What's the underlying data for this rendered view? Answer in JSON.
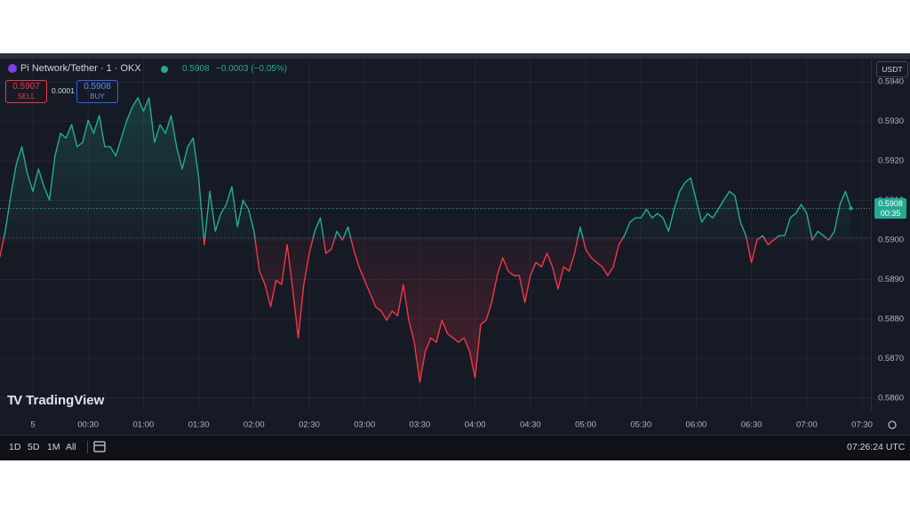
{
  "header": {
    "symbol": "Pi Network/Tether · 1 · OKX",
    "price": "0.5908",
    "change": "−0.0003 (−0.05%)"
  },
  "trade": {
    "sell_price": "0.5907",
    "sell_label": "SELL",
    "spread": "0.0001",
    "buy_price": "0.5908",
    "buy_label": "BUY"
  },
  "currency": "USDT",
  "price_tag": {
    "price": "0.5908",
    "countdown": "00:35"
  },
  "watermark": "TradingView",
  "toolbar": {
    "ranges": [
      "1D",
      "5D",
      "1M",
      "All"
    ],
    "clock": "07:26:24 UTC"
  },
  "chart_data": {
    "type": "line",
    "x": [
      -18,
      -15,
      -12,
      -9,
      -6,
      -3,
      0,
      3,
      6,
      9,
      12,
      15,
      18,
      21,
      24,
      27,
      30,
      33,
      36,
      39,
      42,
      45,
      48,
      51,
      54,
      57,
      60,
      63,
      66,
      69,
      72,
      75,
      78,
      81,
      84,
      87,
      90,
      93,
      96,
      99,
      102,
      105,
      108,
      111,
      114,
      117,
      120,
      123,
      126,
      129,
      132,
      135,
      138,
      141,
      144,
      147,
      150,
      153,
      156,
      159,
      162,
      165,
      168,
      171,
      174,
      177,
      180,
      183,
      186,
      189,
      192,
      195,
      198,
      201,
      204,
      207,
      210,
      213,
      216,
      219,
      222,
      225,
      228,
      231,
      234,
      237,
      240,
      243,
      246,
      249,
      252,
      255,
      258,
      261,
      264,
      267,
      270,
      273,
      276,
      279,
      282,
      285,
      288,
      291,
      294,
      297,
      300,
      303,
      306,
      309,
      312,
      315,
      318,
      321,
      324,
      327,
      330,
      333,
      336,
      339,
      342,
      345,
      348,
      351,
      354,
      357,
      360,
      363,
      366,
      369,
      372,
      375,
      378,
      381,
      384,
      387,
      390,
      393,
      396,
      399,
      402,
      405,
      408,
      411,
      414,
      417,
      420,
      423,
      426,
      429,
      432,
      435,
      438,
      441,
      444
    ],
    "values": [
      0.58955,
      0.59022,
      0.59112,
      0.59191,
      0.59236,
      0.59168,
      0.59123,
      0.5918,
      0.59135,
      0.59101,
      0.59213,
      0.5927,
      0.59258,
      0.59292,
      0.59236,
      0.59247,
      0.59303,
      0.5927,
      0.59315,
      0.59236,
      0.59236,
      0.59213,
      0.59258,
      0.59303,
      0.59337,
      0.5936,
      0.59326,
      0.5936,
      0.59247,
      0.59292,
      0.5927,
      0.59315,
      0.59236,
      0.5918,
      0.59236,
      0.59258,
      0.59157,
      0.58988,
      0.59123,
      0.59022,
      0.59067,
      0.5909,
      0.59135,
      0.59033,
      0.59101,
      0.59078,
      0.59022,
      0.58921,
      0.58887,
      0.58831,
      0.58898,
      0.58887,
      0.58988,
      0.58876,
      0.58752,
      0.58887,
      0.58966,
      0.59022,
      0.59056,
      0.58966,
      0.58977,
      0.59022,
      0.59,
      0.59033,
      0.58977,
      0.58932,
      0.58898,
      0.58865,
      0.58831,
      0.5882,
      0.58797,
      0.5882,
      0.58808,
      0.58887,
      0.58797,
      0.58741,
      0.5864,
      0.58718,
      0.58752,
      0.58741,
      0.58797,
      0.58763,
      0.58752,
      0.58741,
      0.58752,
      0.58718,
      0.58651,
      0.58786,
      0.58797,
      0.58842,
      0.5891,
      0.58955,
      0.58921,
      0.5891,
      0.5891,
      0.58842,
      0.5891,
      0.58943,
      0.58932,
      0.58966,
      0.58932,
      0.58876,
      0.58932,
      0.58921,
      0.58966,
      0.59033,
      0.58977,
      0.58955,
      0.58943,
      0.58932,
      0.5891,
      0.58932,
      0.58988,
      0.59011,
      0.59045,
      0.59056,
      0.59056,
      0.59078,
      0.59056,
      0.59067,
      0.59056,
      0.59022,
      0.59078,
      0.59123,
      0.59146,
      0.59157,
      0.59101,
      0.59045,
      0.59067,
      0.59056,
      0.59078,
      0.59101,
      0.59123,
      0.59112,
      0.59045,
      0.59011,
      0.58943,
      0.59,
      0.59011,
      0.58988,
      0.59,
      0.59011,
      0.59011,
      0.59056,
      0.59067,
      0.5909,
      0.59067,
      0.59,
      0.59022,
      0.59011,
      0.59,
      0.59022,
      0.5909,
      0.59123,
      0.5908
    ],
    "baseline": 0.59005,
    "colors": {
      "up": "#22ab94",
      "down": "#f23645"
    },
    "xlim": [
      -17.85,
      454.8
    ],
    "xticks": [
      {
        "value": 0,
        "label": "5"
      },
      {
        "value": 30,
        "label": "00:30"
      },
      {
        "value": 60,
        "label": "01:00"
      },
      {
        "value": 90,
        "label": "01:30"
      },
      {
        "value": 120,
        "label": "02:00"
      },
      {
        "value": 150,
        "label": "02:30"
      },
      {
        "value": 180,
        "label": "03:00"
      },
      {
        "value": 210,
        "label": "03:30"
      },
      {
        "value": 240,
        "label": "04:00"
      },
      {
        "value": 270,
        "label": "04:30"
      },
      {
        "value": 300,
        "label": "05:00"
      },
      {
        "value": 330,
        "label": "05:30"
      },
      {
        "value": 360,
        "label": "06:00"
      },
      {
        "value": 390,
        "label": "06:30"
      },
      {
        "value": 420,
        "label": "07:00"
      },
      {
        "value": 450,
        "label": "07:30"
      }
    ],
    "ylim": [
      0.58568,
      0.59459
    ],
    "yticks": [
      {
        "value": 0.594,
        "label": "0.5940"
      },
      {
        "value": 0.593,
        "label": "0.5930"
      },
      {
        "value": 0.592,
        "label": "0.5920"
      },
      {
        "value": 0.591,
        "label": "0.5910"
      },
      {
        "value": 0.59,
        "label": "0.5900"
      },
      {
        "value": 0.589,
        "label": "0.5890"
      },
      {
        "value": 0.588,
        "label": "0.5880"
      },
      {
        "value": 0.587,
        "label": "0.5870"
      },
      {
        "value": 0.586,
        "label": "0.5860"
      }
    ],
    "grid": true
  }
}
